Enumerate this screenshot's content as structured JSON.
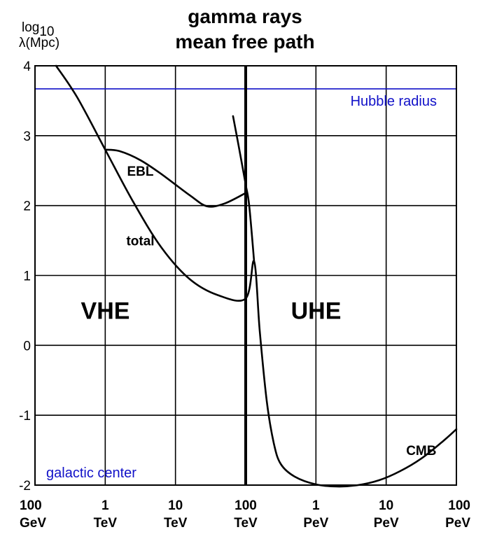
{
  "chart_data": {
    "type": "line",
    "title": [
      "gamma rays",
      "mean free path"
    ],
    "ylabel": [
      "log",
      "10",
      "λ(Mpc)"
    ],
    "ylim": [
      -2,
      4
    ],
    "yticks": [
      "4",
      "3",
      "2",
      "1",
      "0",
      "-1",
      "-2"
    ],
    "xticks": [
      {
        "top": "100",
        "bottom": "GeV"
      },
      {
        "top": "1",
        "bottom": "TeV"
      },
      {
        "top": "10",
        "bottom": "TeV"
      },
      {
        "top": "100",
        "bottom": "TeV"
      },
      {
        "top": "1",
        "bottom": "PeV"
      },
      {
        "top": "10",
        "bottom": "PeV"
      },
      {
        "top": "100",
        "bottom": "PeV"
      }
    ],
    "x_note": "x values are log10 of photon energy in GeV (2 = 100 GeV ... 8 = 100 PeV)",
    "grid": true,
    "reference_lines": [
      {
        "label": "Hubble radius",
        "y": 3.67,
        "color": "#1010c8"
      },
      {
        "label": "galactic center",
        "y": -2.0,
        "color": "#1010c8"
      }
    ],
    "regions": [
      {
        "label": "VHE",
        "x": 3.5,
        "y": 0.5
      },
      {
        "label": "UHE",
        "x": 6.5,
        "y": 0.5
      }
    ],
    "curve_labels": [
      {
        "label": "EBL",
        "x": 3.5,
        "y": 2.5
      },
      {
        "label": "total",
        "x": 3.5,
        "y": 1.5
      },
      {
        "label": "CMB",
        "x": 7.5,
        "y": -1.5
      }
    ],
    "series": [
      {
        "name": "total",
        "x": [
          2.3,
          2.6,
          3.0,
          3.4,
          3.8,
          4.2,
          4.6,
          5.0,
          5.12,
          5.2,
          5.3,
          5.4,
          5.5,
          5.7,
          6.0,
          6.3,
          6.6,
          6.9,
          7.2,
          7.5,
          7.8,
          8.0
        ],
        "y": [
          4.0,
          3.55,
          2.8,
          2.05,
          1.4,
          0.95,
          0.72,
          0.67,
          1.2,
          0.2,
          -0.8,
          -1.4,
          -1.7,
          -1.88,
          -1.99,
          -2.02,
          -2.0,
          -1.93,
          -1.8,
          -1.62,
          -1.38,
          -1.2
        ]
      },
      {
        "name": "EBL",
        "x": [
          3.0,
          3.2,
          3.5,
          3.8,
          4.2,
          4.45,
          4.7,
          5.0
        ],
        "y": [
          2.8,
          2.78,
          2.65,
          2.45,
          2.15,
          1.99,
          2.03,
          2.18
        ]
      },
      {
        "name": "CMB",
        "x": [
          4.82,
          4.9,
          5.0,
          5.05,
          5.12
        ],
        "y": [
          3.28,
          2.85,
          2.3,
          2.0,
          1.2
        ]
      }
    ],
    "vertical_lines": [
      {
        "x": 5.0,
        "note": "bold divider at 100 TeV"
      }
    ]
  }
}
